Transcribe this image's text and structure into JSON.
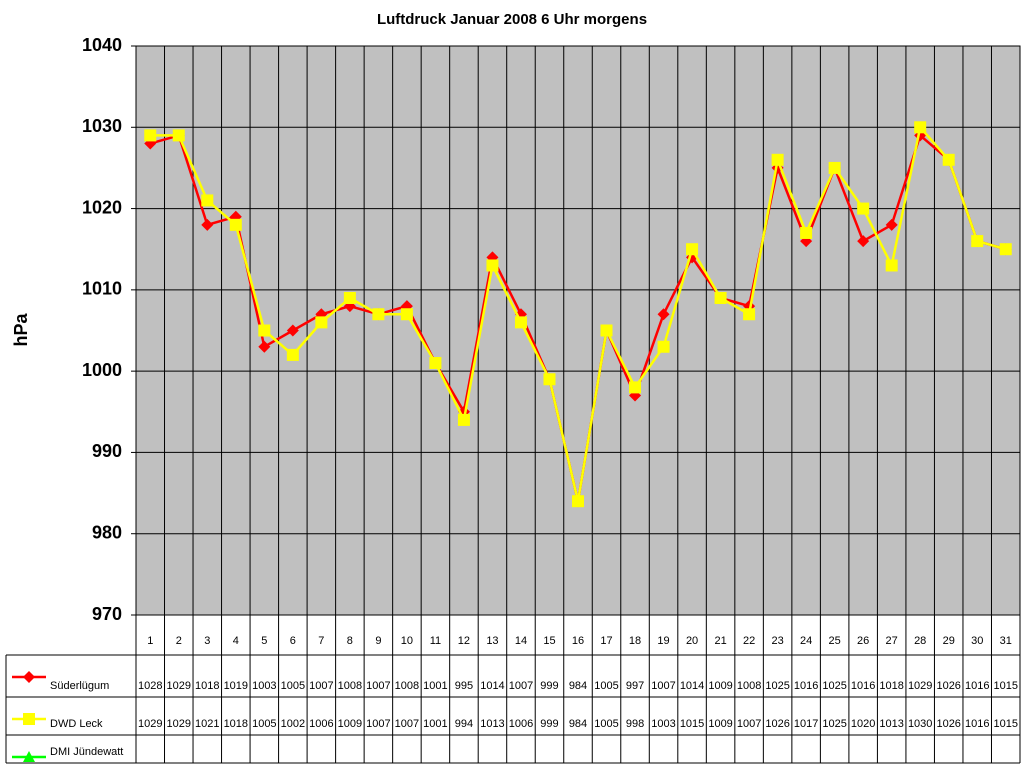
{
  "chart_data": {
    "type": "line",
    "title": "Luftdruck Januar 2008 6 Uhr morgens",
    "y_label": "hPa",
    "categories": [
      "1",
      "2",
      "3",
      "4",
      "5",
      "6",
      "7",
      "8",
      "9",
      "10",
      "11",
      "12",
      "13",
      "14",
      "15",
      "16",
      "17",
      "18",
      "19",
      "20",
      "21",
      "22",
      "23",
      "24",
      "25",
      "26",
      "27",
      "28",
      "29",
      "30",
      "31"
    ],
    "series": [
      {
        "name": "Süderlügum",
        "color": "#ff0000",
        "marker": "diamond",
        "values": [
          1028,
          1029,
          1018,
          1019,
          1003,
          1005,
          1007,
          1008,
          1007,
          1008,
          1001,
          995,
          1014,
          1007,
          999,
          984,
          1005,
          997,
          1007,
          1014,
          1009,
          1008,
          1025,
          1016,
          1025,
          1016,
          1018,
          1029,
          1026,
          1016,
          1015
        ]
      },
      {
        "name": "DWD Leck",
        "color": "#ffff00",
        "marker": "square",
        "values": [
          1029,
          1029,
          1021,
          1018,
          1005,
          1002,
          1006,
          1009,
          1007,
          1007,
          1001,
          994,
          1013,
          1006,
          999,
          984,
          1005,
          998,
          1003,
          1015,
          1009,
          1007,
          1026,
          1017,
          1025,
          1020,
          1013,
          1030,
          1026,
          1016,
          1015
        ]
      },
      {
        "name": "DMI Jündewatt",
        "color": "#00ff00",
        "marker": "triangle",
        "values": [
          null,
          null,
          null,
          null,
          null,
          null,
          null,
          null,
          null,
          null,
          null,
          null,
          null,
          null,
          null,
          null,
          null,
          null,
          null,
          null,
          null,
          null,
          null,
          null,
          null,
          null,
          null,
          null,
          null,
          null,
          null
        ]
      }
    ],
    "ylim": [
      970,
      1040
    ],
    "yticks": [
      970,
      980,
      990,
      1000,
      1010,
      1020,
      1030,
      1040
    ],
    "grid": true,
    "legend": "data-table"
  }
}
